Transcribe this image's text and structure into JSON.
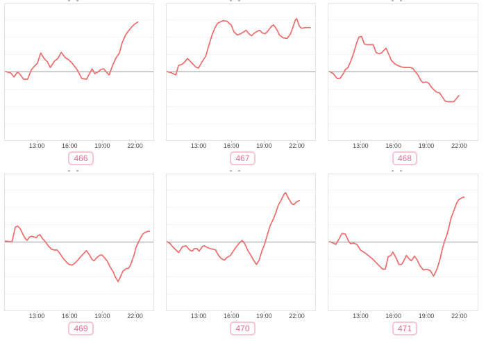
{
  "page": {
    "background": "#ffffff",
    "note": "2x3 grid of intraday sparkline charts; chart titles are cut off at top edge; y-axis is unlabeled"
  },
  "chart_config": {
    "x_start_hour": 10.0,
    "x_end_hour": 23.75,
    "x_tick_hours": [
      13,
      16,
      19,
      22
    ],
    "baseline_pct": 49.5,
    "gridlines_pct": [
      11.25,
      24.0,
      36.75,
      62.25,
      75.0,
      87.75
    ],
    "line_color": "#ee6b6b",
    "zero_line_color": "#9b9b9b",
    "grid_color": "#ececec",
    "plot_border_color": "#e2e2e2",
    "tick_label_color": "#474747",
    "badge_border_color": "#f9c3d0",
    "badge_text_color": "#e0708c",
    "value_units": "relative change, % of plot height above the zero baseline (y-axis not labeled in image)"
  },
  "chart_data": [
    {
      "id": "466",
      "type": "line",
      "title": "",
      "x_ticks": [
        "13:00",
        "16:00",
        "19:00",
        "22:00"
      ],
      "points": [
        [
          10.08,
          0
        ],
        [
          10.53,
          -1
        ],
        [
          10.85,
          -4
        ],
        [
          11.16,
          -0.5
        ],
        [
          11.35,
          -1.5
        ],
        [
          11.73,
          -5.6
        ],
        [
          12.11,
          -5.6
        ],
        [
          12.43,
          1
        ],
        [
          12.68,
          3.5
        ],
        [
          13.0,
          6
        ],
        [
          13.32,
          13.6
        ],
        [
          13.63,
          9.6
        ],
        [
          13.95,
          7
        ],
        [
          14.2,
          3
        ],
        [
          14.58,
          7.6
        ],
        [
          14.9,
          9.6
        ],
        [
          15.22,
          14.1
        ],
        [
          15.6,
          10.1
        ],
        [
          15.92,
          8.6
        ],
        [
          16.23,
          6.1
        ],
        [
          16.49,
          3.5
        ],
        [
          16.68,
          1.5
        ],
        [
          17.12,
          -5.1
        ],
        [
          17.56,
          -5.6
        ],
        [
          18.07,
          2
        ],
        [
          18.32,
          -1.5
        ],
        [
          18.58,
          -0.5
        ],
        [
          18.89,
          1.5
        ],
        [
          19.15,
          2
        ],
        [
          19.4,
          -0.5
        ],
        [
          19.65,
          -2.5
        ],
        [
          19.97,
          4.5
        ],
        [
          20.29,
          10.1
        ],
        [
          20.6,
          13.6
        ],
        [
          20.86,
          21.2
        ],
        [
          21.17,
          26.8
        ],
        [
          21.43,
          29.8
        ],
        [
          21.75,
          32.8
        ],
        [
          22.0,
          34.8
        ],
        [
          22.31,
          36.4
        ]
      ]
    },
    {
      "id": "467",
      "type": "line",
      "title": "",
      "x_ticks": [
        "13:00",
        "16:00",
        "19:00",
        "22:00"
      ],
      "points": [
        [
          10.03,
          0
        ],
        [
          10.47,
          -1
        ],
        [
          10.85,
          -2.5
        ],
        [
          11.1,
          4.5
        ],
        [
          11.36,
          5
        ],
        [
          11.61,
          6.5
        ],
        [
          11.93,
          9.6
        ],
        [
          12.37,
          6
        ],
        [
          12.68,
          3.5
        ],
        [
          12.94,
          2.5
        ],
        [
          13.32,
          7.6
        ],
        [
          13.63,
          11.6
        ],
        [
          13.95,
          20.2
        ],
        [
          14.2,
          26.8
        ],
        [
          14.45,
          31.8
        ],
        [
          14.71,
          35.4
        ],
        [
          14.96,
          36.4
        ],
        [
          15.27,
          37.4
        ],
        [
          15.59,
          36.9
        ],
        [
          15.72,
          35.9
        ],
        [
          15.97,
          34.3
        ],
        [
          16.22,
          29.3
        ],
        [
          16.54,
          26.8
        ],
        [
          16.85,
          27.8
        ],
        [
          17.17,
          29.3
        ],
        [
          17.36,
          30.3
        ],
        [
          17.61,
          27.8
        ],
        [
          17.86,
          26.3
        ],
        [
          18.12,
          28.3
        ],
        [
          18.43,
          29.8
        ],
        [
          18.62,
          30.3
        ],
        [
          18.87,
          28.3
        ],
        [
          19.13,
          27.8
        ],
        [
          19.38,
          29.8
        ],
        [
          19.7,
          33.3
        ],
        [
          19.89,
          34.3
        ],
        [
          20.2,
          30.8
        ],
        [
          20.45,
          26.8
        ],
        [
          20.77,
          24.8
        ],
        [
          21.15,
          24.3
        ],
        [
          21.47,
          27.8
        ],
        [
          21.72,
          33.3
        ],
        [
          21.91,
          37.9
        ],
        [
          22.03,
          38.9
        ],
        [
          22.29,
          33.3
        ],
        [
          22.48,
          31.8
        ],
        [
          22.85,
          32.3
        ],
        [
          23.3,
          32.3
        ]
      ]
    },
    {
      "id": "468",
      "type": "line",
      "title": "",
      "x_ticks": [
        "13:00",
        "16:00",
        "19:00",
        "22:00"
      ],
      "points": [
        [
          10.12,
          0
        ],
        [
          10.44,
          -1.5
        ],
        [
          10.81,
          -5.1
        ],
        [
          11.06,
          -5.1
        ],
        [
          11.38,
          -1.5
        ],
        [
          11.56,
          1.5
        ],
        [
          11.81,
          3
        ],
        [
          12.06,
          7.6
        ],
        [
          12.31,
          13.1
        ],
        [
          12.5,
          18.2
        ],
        [
          12.63,
          21.7
        ],
        [
          12.81,
          25.3
        ],
        [
          13.06,
          25.8
        ],
        [
          13.31,
          20.2
        ],
        [
          13.63,
          19.7
        ],
        [
          13.88,
          19.7
        ],
        [
          14.13,
          19.7
        ],
        [
          14.38,
          14.1
        ],
        [
          14.63,
          13.1
        ],
        [
          14.88,
          13.6
        ],
        [
          15.13,
          15.7
        ],
        [
          15.31,
          17.2
        ],
        [
          15.56,
          12.6
        ],
        [
          15.81,
          8.1
        ],
        [
          16.13,
          5.6
        ],
        [
          16.38,
          4.5
        ],
        [
          16.69,
          3.5
        ],
        [
          17.0,
          3
        ],
        [
          17.25,
          3
        ],
        [
          17.5,
          3
        ],
        [
          17.75,
          2.5
        ],
        [
          18.0,
          0
        ],
        [
          18.25,
          -2.5
        ],
        [
          18.56,
          -7.1
        ],
        [
          18.75,
          -8.1
        ],
        [
          19.0,
          -7.6
        ],
        [
          19.25,
          -8.6
        ],
        [
          19.5,
          -11.6
        ],
        [
          19.81,
          -14.1
        ],
        [
          20.0,
          -15.2
        ],
        [
          20.25,
          -15.7
        ],
        [
          20.5,
          -18.7
        ],
        [
          20.75,
          -21.7
        ],
        [
          21.06,
          -22.2
        ],
        [
          21.31,
          -22.2
        ],
        [
          21.56,
          -22.2
        ],
        [
          21.81,
          -19.7
        ],
        [
          22.0,
          -17.7
        ]
      ]
    },
    {
      "id": "469",
      "type": "line",
      "title": "",
      "x_ticks": [
        "13:00",
        "16:00",
        "19:00",
        "22:00"
      ],
      "points": [
        [
          10.02,
          0.5
        ],
        [
          10.47,
          0
        ],
        [
          10.66,
          0
        ],
        [
          10.97,
          10.6
        ],
        [
          11.16,
          11.6
        ],
        [
          11.42,
          9.6
        ],
        [
          11.73,
          4.5
        ],
        [
          11.92,
          2
        ],
        [
          12.05,
          1
        ],
        [
          12.3,
          3.5
        ],
        [
          12.49,
          4
        ],
        [
          12.68,
          3.5
        ],
        [
          12.94,
          3
        ],
        [
          13.06,
          4.5
        ],
        [
          13.25,
          5.1
        ],
        [
          13.51,
          2
        ],
        [
          13.7,
          0.5
        ],
        [
          14.01,
          -3
        ],
        [
          14.33,
          -5.6
        ],
        [
          14.58,
          -6.1
        ],
        [
          14.84,
          -6.1
        ],
        [
          15.09,
          -8.6
        ],
        [
          15.34,
          -11.6
        ],
        [
          15.6,
          -14.1
        ],
        [
          15.92,
          -16.7
        ],
        [
          16.23,
          -17.2
        ],
        [
          16.49,
          -15.7
        ],
        [
          16.8,
          -13.1
        ],
        [
          17.06,
          -10.6
        ],
        [
          17.31,
          -8.6
        ],
        [
          17.56,
          -6.6
        ],
        [
          17.82,
          -9.6
        ],
        [
          18.07,
          -13.1
        ],
        [
          18.26,
          -14.1
        ],
        [
          18.51,
          -11.6
        ],
        [
          18.77,
          -10.1
        ],
        [
          18.96,
          -9.6
        ],
        [
          19.21,
          -11.6
        ],
        [
          19.46,
          -14.1
        ],
        [
          19.72,
          -18.2
        ],
        [
          20.03,
          -22.2
        ],
        [
          20.22,
          -25.8
        ],
        [
          20.48,
          -29.3
        ],
        [
          20.73,
          -25.3
        ],
        [
          20.92,
          -21.7
        ],
        [
          21.24,
          -19.7
        ],
        [
          21.43,
          -19.7
        ],
        [
          21.62,
          -17.2
        ],
        [
          21.94,
          -10.1
        ],
        [
          22.13,
          -4.5
        ],
        [
          22.32,
          -1
        ],
        [
          22.57,
          3
        ],
        [
          22.76,
          5.6
        ],
        [
          22.95,
          6.6
        ],
        [
          23.2,
          7.6
        ],
        [
          23.39,
          7.6
        ]
      ]
    },
    {
      "id": "470",
      "type": "line",
      "title": "",
      "x_ticks": [
        "13:00",
        "16:00",
        "19:00",
        "22:00"
      ],
      "points": [
        [
          10.03,
          0
        ],
        [
          10.28,
          -1
        ],
        [
          10.54,
          -3.5
        ],
        [
          10.85,
          -6
        ],
        [
          11.1,
          -8
        ],
        [
          11.48,
          -3.5
        ],
        [
          11.8,
          -3
        ],
        [
          12.12,
          -6
        ],
        [
          12.37,
          -7
        ],
        [
          12.56,
          -5
        ],
        [
          12.81,
          -5
        ],
        [
          13.0,
          -7
        ],
        [
          13.32,
          -3.5
        ],
        [
          13.51,
          -3
        ],
        [
          13.69,
          -4
        ],
        [
          14.01,
          -5
        ],
        [
          14.26,
          -5.5
        ],
        [
          14.52,
          -6
        ],
        [
          14.77,
          -9.6
        ],
        [
          15.02,
          -12.1
        ],
        [
          15.34,
          -13.6
        ],
        [
          15.59,
          -11.6
        ],
        [
          15.91,
          -10.1
        ],
        [
          16.16,
          -7
        ],
        [
          16.47,
          -3.5
        ],
        [
          16.73,
          -1
        ],
        [
          16.98,
          1
        ],
        [
          17.23,
          -1.5
        ],
        [
          17.49,
          -6
        ],
        [
          17.8,
          -10.1
        ],
        [
          18.05,
          -13.6
        ],
        [
          18.31,
          -16.7
        ],
        [
          18.56,
          -13.6
        ],
        [
          18.81,
          -7
        ],
        [
          19.06,
          -2
        ],
        [
          19.32,
          5.1
        ],
        [
          19.57,
          11.6
        ],
        [
          19.82,
          15.7
        ],
        [
          20.08,
          20.7
        ],
        [
          20.33,
          26.8
        ],
        [
          20.58,
          30.3
        ],
        [
          20.9,
          35.4
        ],
        [
          21.02,
          35.9
        ],
        [
          21.28,
          31.8
        ],
        [
          21.59,
          27.8
        ],
        [
          21.78,
          27.3
        ],
        [
          22.03,
          29.3
        ],
        [
          22.29,
          30.3
        ]
      ]
    },
    {
      "id": "471",
      "type": "line",
      "title": "",
      "x_ticks": [
        "13:00",
        "16:00",
        "19:00",
        "22:00"
      ],
      "points": [
        [
          10.13,
          0
        ],
        [
          10.44,
          -1
        ],
        [
          10.69,
          -2
        ],
        [
          10.94,
          1.5
        ],
        [
          11.25,
          6
        ],
        [
          11.56,
          5.6
        ],
        [
          11.88,
          0
        ],
        [
          12.06,
          -1.5
        ],
        [
          12.31,
          -1
        ],
        [
          12.63,
          -2
        ],
        [
          12.94,
          -6
        ],
        [
          13.13,
          -7
        ],
        [
          13.44,
          -8.6
        ],
        [
          13.75,
          -10.6
        ],
        [
          14.06,
          -12.6
        ],
        [
          14.38,
          -15.2
        ],
        [
          14.69,
          -17.7
        ],
        [
          15.0,
          -20.2
        ],
        [
          15.25,
          -20.2
        ],
        [
          15.5,
          -11.1
        ],
        [
          15.75,
          -10.1
        ],
        [
          15.94,
          -7.6
        ],
        [
          16.25,
          -12.1
        ],
        [
          16.5,
          -16.7
        ],
        [
          16.75,
          -16.7
        ],
        [
          17.0,
          -13.1
        ],
        [
          17.19,
          -10.1
        ],
        [
          17.38,
          -12.1
        ],
        [
          17.63,
          -14.1
        ],
        [
          17.94,
          -10.6
        ],
        [
          18.19,
          -13.6
        ],
        [
          18.44,
          -17.7
        ],
        [
          18.75,
          -20.7
        ],
        [
          19.06,
          -20.2
        ],
        [
          19.38,
          -21.2
        ],
        [
          19.69,
          -25.3
        ],
        [
          20.0,
          -20.2
        ],
        [
          20.31,
          -12.1
        ],
        [
          20.5,
          -5.1
        ],
        [
          20.69,
          0
        ],
        [
          20.94,
          5.6
        ],
        [
          21.13,
          11.6
        ],
        [
          21.31,
          17.7
        ],
        [
          21.63,
          24.2
        ],
        [
          21.81,
          28.3
        ],
        [
          22.0,
          30.8
        ],
        [
          22.31,
          32.3
        ],
        [
          22.5,
          32.8
        ]
      ]
    }
  ]
}
